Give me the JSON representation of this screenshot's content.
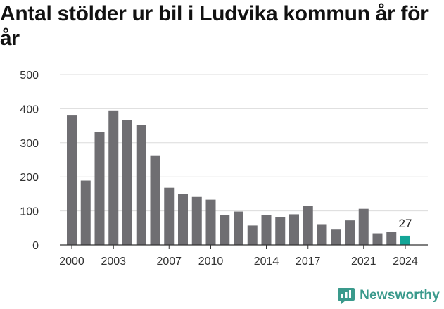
{
  "chart_data": {
    "type": "bar",
    "title": "Antal stölder ur bil i Ludvika kommun år för år",
    "xlabel": "",
    "ylabel": "",
    "ylim": [
      0,
      500
    ],
    "yticks": [
      "0",
      "100",
      "200",
      "300",
      "400",
      "500"
    ],
    "xtick_labels": [
      "2000",
      "2003",
      "2007",
      "2010",
      "2014",
      "2017",
      "2021",
      "2024"
    ],
    "categories": [
      "2000",
      "2001",
      "2002",
      "2003",
      "2004",
      "2005",
      "2006",
      "2007",
      "2008",
      "2009",
      "2010",
      "2011",
      "2012",
      "2013",
      "2014",
      "2015",
      "2016",
      "2017",
      "2018",
      "2019",
      "2020",
      "2021",
      "2022",
      "2023",
      "2024"
    ],
    "values": [
      380,
      189,
      331,
      395,
      366,
      353,
      263,
      168,
      149,
      141,
      133,
      87,
      98,
      57,
      88,
      81,
      90,
      115,
      61,
      45,
      72,
      106,
      34,
      38,
      27
    ],
    "highlight": {
      "category": "2024",
      "label": "27"
    },
    "colors": {
      "bar": "#6f6e72",
      "highlight": "#13a597",
      "grid": "#dcdcdc",
      "axis": "#333333"
    },
    "grid": true
  },
  "brand": {
    "name": "Newsworthy",
    "icon": "newsworthy-logo-icon",
    "color": "#3a9a8c"
  }
}
